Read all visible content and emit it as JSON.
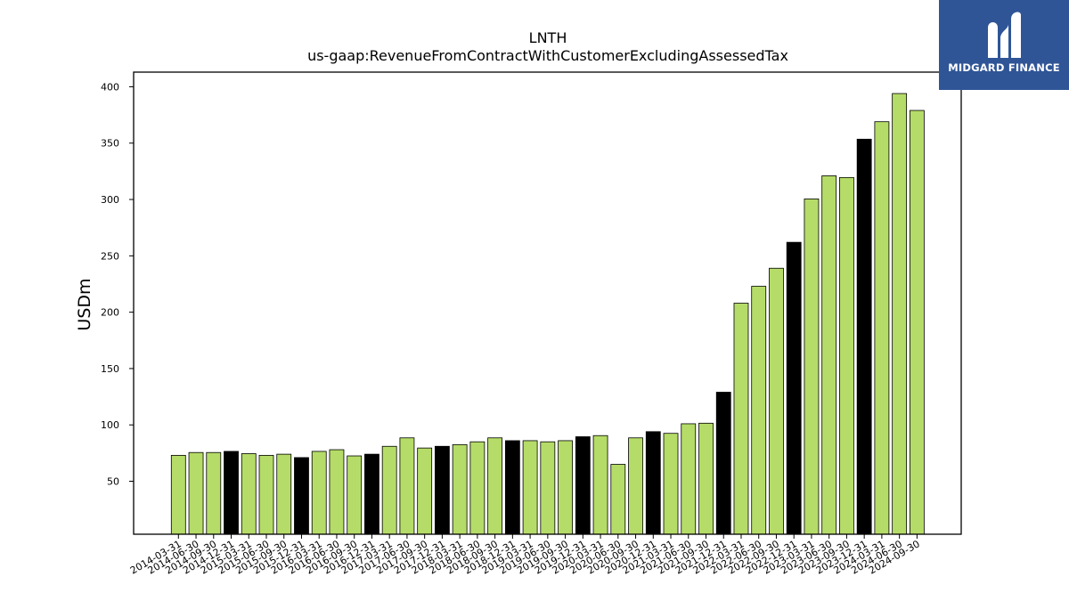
{
  "chart_data": {
    "type": "bar",
    "title": "LNTH",
    "subtitle": "us-gaap:RevenueFromContractWithCustomerExcludingAssessedTax",
    "ylabel": "USDm",
    "xlabel": "",
    "ylim": [
      3,
      413
    ],
    "yticks": [
      50,
      100,
      150,
      200,
      250,
      300,
      350,
      400
    ],
    "grid": false,
    "colors": {
      "quarter": "#b5dc68",
      "year_end": "#000000",
      "edge": "#000000"
    },
    "categories": [
      "2014-03-31",
      "2014-06-30",
      "2014-09-30",
      "2014-12-31",
      "2015-03-31",
      "2015-06-30",
      "2015-09-30",
      "2015-12-31",
      "2016-03-31",
      "2016-06-30",
      "2016-09-30",
      "2016-12-31",
      "2017-03-31",
      "2017-06-30",
      "2017-09-30",
      "2017-12-31",
      "2018-03-31",
      "2018-06-30",
      "2018-09-30",
      "2018-12-31",
      "2019-03-31",
      "2019-06-30",
      "2019-09-30",
      "2019-12-31",
      "2020-03-31",
      "2020-06-30",
      "2020-09-30",
      "2020-12-31",
      "2021-03-31",
      "2021-06-30",
      "2021-09-30",
      "2021-12-31",
      "2022-03-31",
      "2022-06-30",
      "2022-09-30",
      "2022-12-31",
      "2023-03-31",
      "2023-06-30",
      "2023-09-30",
      "2023-12-31",
      "2024-03-31",
      "2024-06-30",
      "2024-09-30"
    ],
    "values": [
      73,
      75.5,
      75.5,
      76.5,
      74.5,
      73,
      74,
      71,
      76.5,
      78,
      72.5,
      74,
      81,
      88.5,
      79.5,
      81,
      82.5,
      85,
      88.5,
      86,
      86,
      85,
      86,
      89.5,
      90.5,
      65,
      88.5,
      94,
      92.5,
      101,
      101.5,
      129,
      208,
      223,
      239,
      262,
      300.5,
      321,
      319.5,
      353.5,
      369,
      394,
      379
    ],
    "year_end": [
      false,
      false,
      false,
      true,
      false,
      false,
      false,
      true,
      false,
      false,
      false,
      true,
      false,
      false,
      false,
      true,
      false,
      false,
      false,
      true,
      false,
      false,
      false,
      true,
      false,
      false,
      false,
      true,
      false,
      false,
      false,
      true,
      false,
      false,
      false,
      true,
      false,
      false,
      false,
      true,
      false,
      false,
      false
    ]
  },
  "logo": {
    "text": "MIDGARD FINANCE",
    "background": "#2f5597"
  }
}
